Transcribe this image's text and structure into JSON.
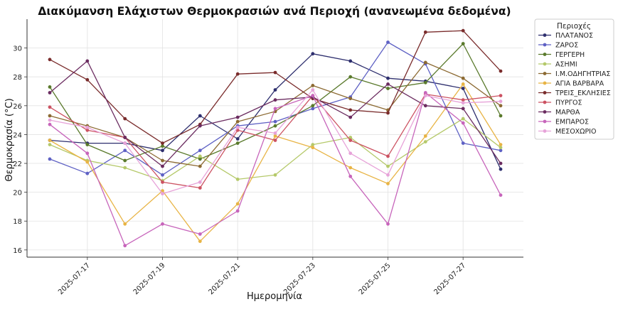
{
  "chart_data": {
    "type": "line",
    "title": "Διακύμανση Ελάχιστων Θερμοκρασιών ανά Περιοχή (ανανεωμένα δεδομένα)",
    "xlabel": "Ημερομηνία",
    "ylabel": "Θερμοκρασία (°C)",
    "x": [
      "2025-07-16",
      "2025-07-17",
      "2025-07-18",
      "2025-07-19",
      "2025-07-20",
      "2025-07-21",
      "2025-07-22",
      "2025-07-23",
      "2025-07-24",
      "2025-07-25",
      "2025-07-26",
      "2025-07-27",
      "2025-07-28"
    ],
    "x_tick_labels": [
      "2025-07-17",
      "2025-07-19",
      "2025-07-21",
      "2025-07-23",
      "2025-07-25",
      "2025-07-27"
    ],
    "y_ticks": [
      16,
      18,
      20,
      22,
      24,
      26,
      28,
      30
    ],
    "ylim": [
      15.5,
      32
    ],
    "grid": true,
    "legend_title": "Περιοχές",
    "legend_position": "right, outside plot",
    "series": [
      {
        "name": "ΠΛΑΤΑΝΟΣ",
        "color": "#2e2f6e",
        "values": [
          23.6,
          23.4,
          23.4,
          22.9,
          25.3,
          23.7,
          27.1,
          29.6,
          29.1,
          27.9,
          27.7,
          27.2,
          21.6
        ]
      },
      {
        "name": "ΖΑΡΟΣ",
        "color": "#5e61c4",
        "values": [
          22.3,
          21.3,
          22.9,
          21.2,
          22.9,
          24.6,
          24.9,
          25.8,
          26.6,
          30.4,
          28.9,
          23.4,
          22.9
        ]
      },
      {
        "name": "ΓΕΡΓΕΡΗ",
        "color": "#5a7a2c",
        "values": [
          27.3,
          23.3,
          22.2,
          23.2,
          22.3,
          23.4,
          24.6,
          26.0,
          28.0,
          27.2,
          27.6,
          30.3,
          25.3
        ]
      },
      {
        "name": "ΑΣΗΜΙ",
        "color": "#b5c96a",
        "values": [
          23.3,
          22.2,
          21.7,
          20.8,
          22.5,
          20.9,
          21.2,
          23.3,
          23.8,
          21.8,
          23.5,
          25.1,
          23.1
        ]
      },
      {
        "name": "Ι.Μ.ΟΔΗΓΗΤΡΙΑΣ",
        "color": "#8c6a32",
        "values": [
          25.3,
          24.6,
          23.8,
          22.2,
          21.8,
          24.9,
          25.6,
          27.4,
          26.5,
          25.7,
          29.0,
          27.9,
          26.0
        ]
      },
      {
        "name": "ΑΓΙΑ ΒΑΡΒΑΡΑ",
        "color": "#e8b445",
        "values": [
          23.6,
          22.1,
          17.8,
          20.1,
          16.6,
          19.2,
          23.9,
          23.1,
          21.7,
          20.6,
          23.9,
          27.5,
          23.3
        ]
      },
      {
        "name": "ΤΡΕΙΣ_ΕΚΛΗΣΙΕΣ",
        "color": "#7a2c2c",
        "values": [
          29.2,
          27.8,
          25.1,
          23.4,
          24.7,
          28.2,
          28.3,
          26.5,
          25.7,
          25.5,
          31.1,
          31.2,
          28.4
        ]
      },
      {
        "name": "ΠΥΡΓΟΣ",
        "color": "#cc5262",
        "values": [
          25.9,
          24.3,
          23.8,
          20.7,
          20.3,
          24.3,
          23.6,
          26.7,
          23.6,
          22.5,
          26.8,
          26.4,
          26.7
        ]
      },
      {
        "name": "ΜΑΡΘΑ",
        "color": "#6b2c60",
        "values": [
          26.9,
          29.1,
          23.8,
          21.8,
          24.6,
          25.2,
          26.4,
          26.6,
          25.2,
          27.5,
          26.0,
          25.8,
          22.0
        ]
      },
      {
        "name": "ΕΜΠΑΡΟΣ",
        "color": "#c765bb",
        "values": [
          24.7,
          22.7,
          16.3,
          17.8,
          17.1,
          18.7,
          25.8,
          26.7,
          21.1,
          17.8,
          26.9,
          24.8,
          19.8
        ]
      },
      {
        "name": "ΜΕΣΟΧΩΡΙΟ",
        "color": "#e7a3d9",
        "values": [
          25.0,
          24.5,
          23.4,
          19.9,
          20.7,
          24.5,
          24.1,
          27.1,
          22.7,
          21.2,
          26.7,
          26.2,
          26.3
        ]
      }
    ]
  }
}
